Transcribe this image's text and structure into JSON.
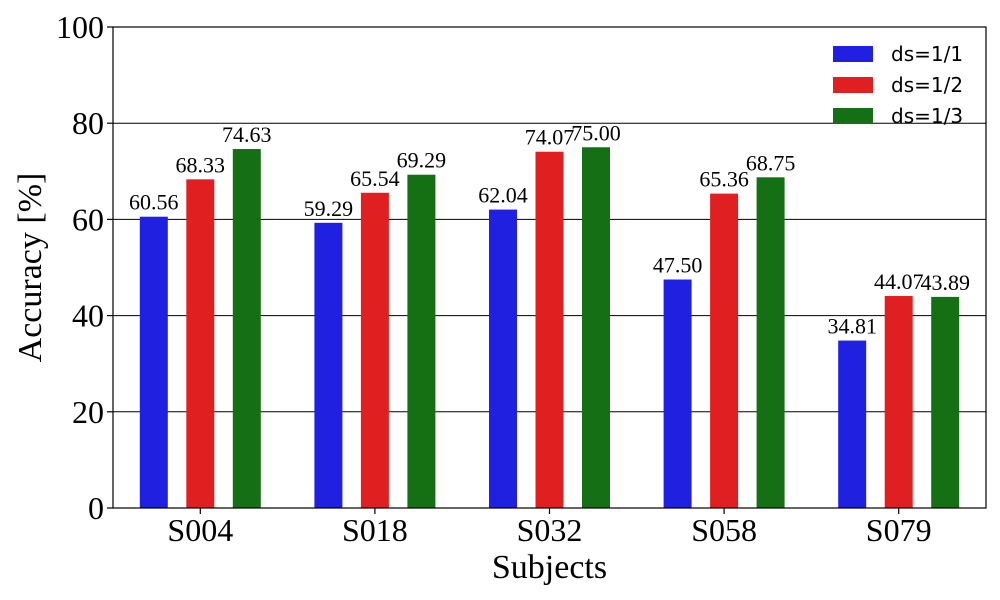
{
  "chart_data": {
    "type": "bar",
    "xlabel": "Subjects",
    "ylabel": "Accuracy [%]",
    "ylim": [
      0,
      100
    ],
    "yticks": [
      "0",
      "20",
      "40",
      "60",
      "80",
      "100"
    ],
    "grid": "horizontal",
    "legend_position": "top-right",
    "categories": [
      "S004",
      "S018",
      "S032",
      "S058",
      "S079"
    ],
    "series": [
      {
        "name": "ds=1/1",
        "color": "#2020e0",
        "values": [
          60.56,
          59.29,
          62.04,
          47.5,
          34.81
        ],
        "labels": [
          "60.56",
          "59.29",
          "62.04",
          "47.50",
          "34.81"
        ]
      },
      {
        "name": "ds=1/2",
        "color": "#e02020",
        "values": [
          68.33,
          65.54,
          74.07,
          65.36,
          44.07
        ],
        "labels": [
          "68.33",
          "65.54",
          "74.07",
          "65.36",
          "44.07"
        ]
      },
      {
        "name": "ds=1/3",
        "color": "#157015",
        "values": [
          74.63,
          69.29,
          75.0,
          68.75,
          43.89
        ],
        "labels": [
          "74.63",
          "69.29",
          "75.00",
          "68.75",
          "43.89"
        ]
      }
    ]
  }
}
